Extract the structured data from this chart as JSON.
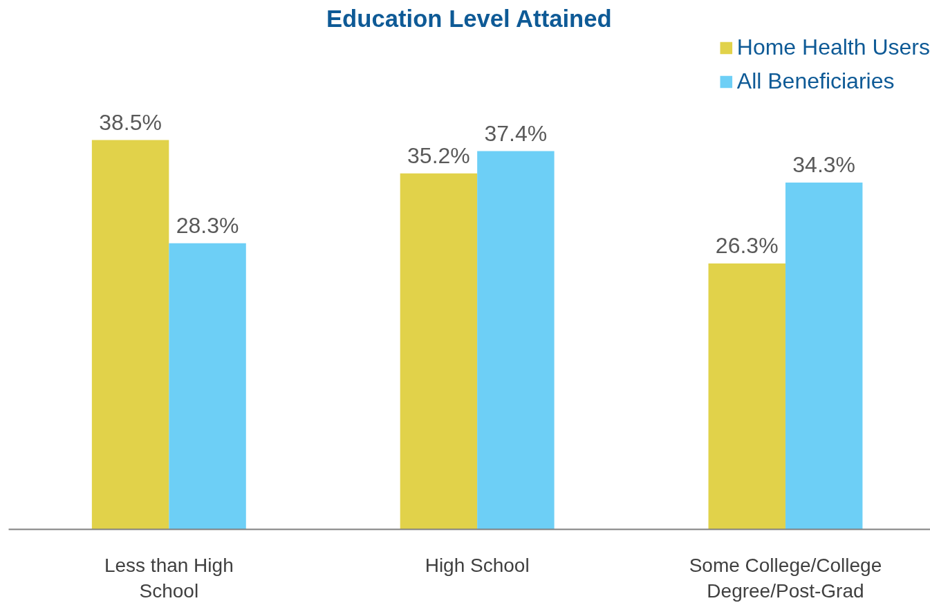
{
  "chart_data": {
    "type": "bar",
    "title": "Education Level Attained",
    "categories": [
      "Less than High School",
      "High School",
      "Some College/College Degree/Post-Grad"
    ],
    "series": [
      {
        "name": "Home Health Users",
        "color": "#e1d24a",
        "values": [
          38.5,
          35.2,
          26.3
        ],
        "value_labels": [
          "38.5%",
          "35.2%",
          "26.3%"
        ]
      },
      {
        "name": "All Beneficiaries",
        "color": "#6dcff6",
        "values": [
          28.3,
          37.4,
          34.3
        ],
        "value_labels": [
          "28.3%",
          "37.4%",
          "34.3%"
        ]
      }
    ],
    "legend": "top right",
    "grid": false,
    "tick_labels": "x"
  }
}
